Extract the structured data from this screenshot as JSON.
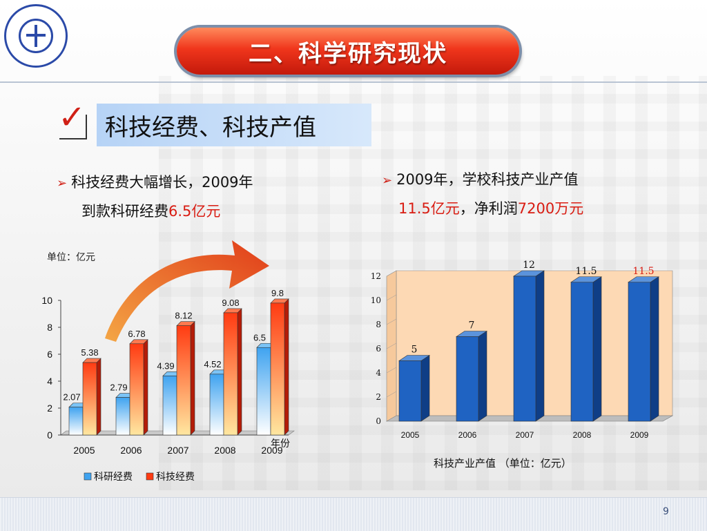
{
  "slide": {
    "title": "二、科学研究现状",
    "subtitle": "科技经费、科技产值",
    "page_number": "9",
    "bullet_left_line1": "科技经费大幅增长，2009年",
    "bullet_left_line2_a": "到款科研经费",
    "bullet_left_line2_b": "6.5亿元",
    "bullet_right_line1": "2009年，学校科技产业产值",
    "bullet_right_line2_a": "11.5亿元",
    "bullet_right_line2_b": "，净利润",
    "bullet_right_line2_c": "7200万元",
    "unit_label": "单位：亿元",
    "right_caption": "科技产业产值 （单位：亿元）",
    "colors": {
      "accent_red": "#d91c12",
      "title_red": "#f0361c",
      "bar_blue": "#1f63c2",
      "bar_red": "#e8311a"
    }
  },
  "chart_data": [
    {
      "type": "bar",
      "categories": [
        "2005",
        "2006",
        "2007",
        "2008",
        "2009"
      ],
      "series": [
        {
          "name": "科研经费",
          "values": [
            2.07,
            2.79,
            4.39,
            4.52,
            6.5
          ]
        },
        {
          "name": "科技经费",
          "values": [
            5.38,
            6.78,
            8.12,
            9.08,
            9.8
          ]
        }
      ],
      "xlabel": "年份",
      "ylabel": "",
      "ylim": [
        0,
        10
      ],
      "yticks": [
        0,
        2,
        4,
        6,
        8,
        10
      ],
      "legend": "bottom"
    },
    {
      "type": "bar",
      "categories": [
        "2005",
        "2006",
        "2007",
        "2008",
        "2009"
      ],
      "values": [
        5,
        7,
        12,
        11.5,
        11.5
      ],
      "labels": [
        "5",
        "7",
        "12",
        "11.5",
        "11.5"
      ],
      "ylim": [
        0,
        12
      ],
      "yticks": [
        0,
        2,
        4,
        6,
        8,
        10,
        12
      ],
      "legend": "none"
    }
  ]
}
